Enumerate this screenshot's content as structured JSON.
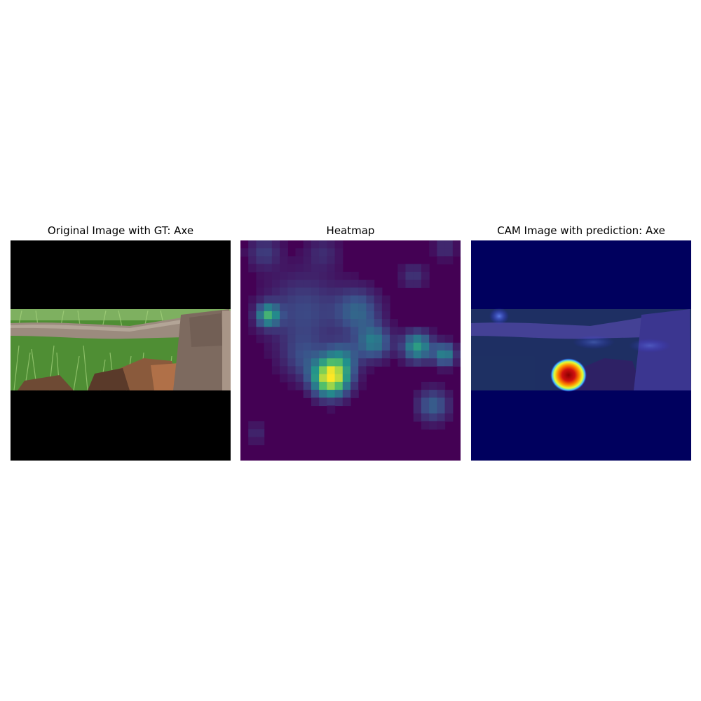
{
  "figure": {
    "panels": [
      {
        "title": "Original Image with GT: Axe",
        "kind": "photo"
      },
      {
        "title": "Heatmap",
        "kind": "heatmap"
      },
      {
        "title": "CAM Image with prediction: Axe",
        "kind": "overlay"
      }
    ]
  },
  "colors": {
    "letterbox": "#000000",
    "heatmap_background": "#440154",
    "overlay_background": "#00005e",
    "grass": "#5c9a3c",
    "axe_handle": "#9b8b7e",
    "axe_head": "#7d6a5f",
    "wood": "#8a5a3c"
  }
}
